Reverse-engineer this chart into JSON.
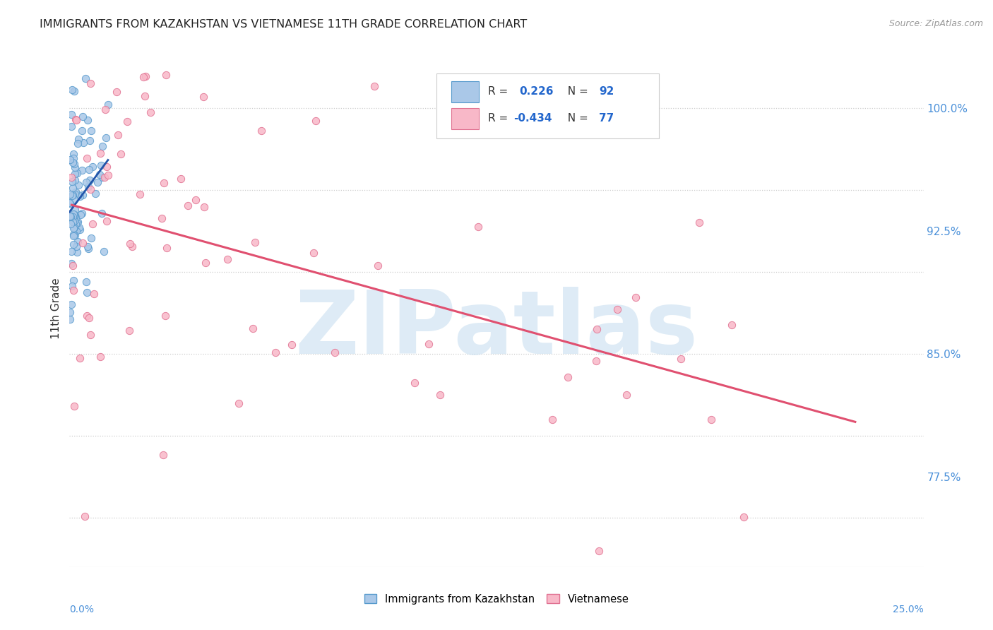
{
  "title": "IMMIGRANTS FROM KAZAKHSTAN VS VIETNAMESE 11TH GRADE CORRELATION CHART",
  "source": "Source: ZipAtlas.com",
  "ylabel": "11th Grade",
  "xlim": [
    0.0,
    0.25
  ],
  "ylim": [
    0.72,
    1.035
  ],
  "grid_color": "#cccccc",
  "background_color": "#ffffff",
  "series": [
    {
      "name": "Immigrants from Kazakhstan",
      "R": 0.226,
      "N": 92,
      "face_color": "#aac8e8",
      "edge_color": "#5599cc",
      "trend_color": "#2255aa",
      "marker_size": 55
    },
    {
      "name": "Vietnamese",
      "R": -0.434,
      "N": 77,
      "face_color": "#f8b8c8",
      "edge_color": "#e07090",
      "trend_color": "#e05070",
      "marker_size": 55
    }
  ],
  "ytick_positions": [
    0.775,
    0.85,
    0.925,
    1.0
  ],
  "ytick_labels": [
    "77.5%",
    "85.0%",
    "92.5%",
    "100.0%"
  ],
  "ytick_color": "#4a90d9",
  "watermark": "ZIPatlas",
  "watermark_color": "#c8dff0",
  "watermark_fontsize": 90,
  "legend_R_color": "#333333",
  "legend_val_color": "#2266cc"
}
